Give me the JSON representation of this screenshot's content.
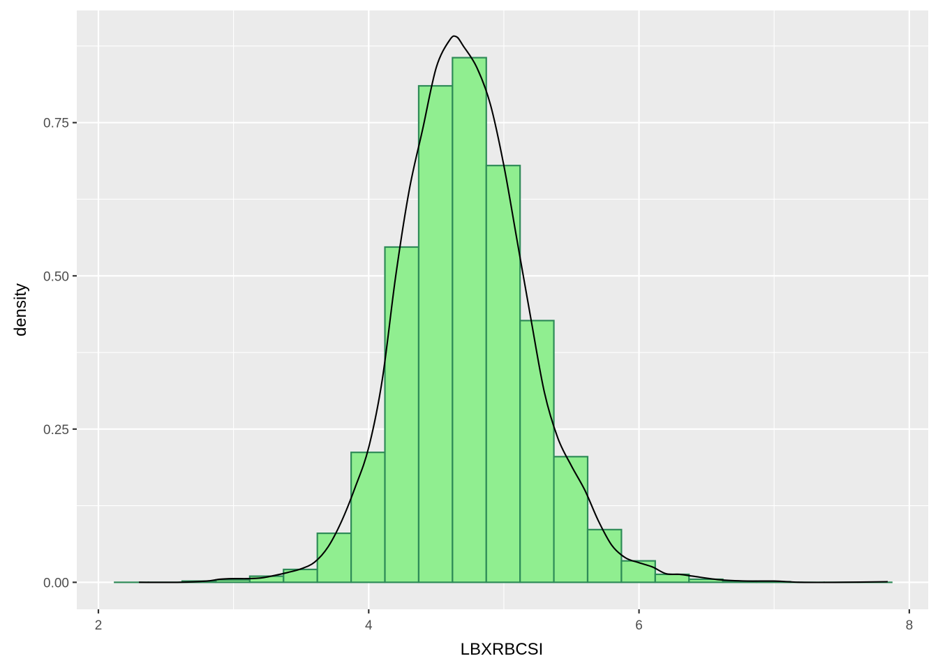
{
  "chart_data": {
    "type": "histogram",
    "title": "",
    "xlabel": "LBXRBCSI",
    "ylabel": "density",
    "xlim": [
      1.84,
      8.14
    ],
    "ylim": [
      -0.044,
      0.933
    ],
    "x_ticks": [
      2,
      4,
      6,
      8
    ],
    "x_tick_labels": [
      "2",
      "4",
      "6",
      "8"
    ],
    "y_ticks": [
      0,
      0.25,
      0.5,
      0.75
    ],
    "y_tick_labels": [
      "0.00",
      "0.25",
      "0.50",
      "0.75"
    ],
    "grid": true,
    "bin_width": 0.25,
    "bins": [
      {
        "x0": 2.12,
        "x1": 2.37,
        "density": 0.0
      },
      {
        "x0": 2.37,
        "x1": 2.62,
        "density": 0.0
      },
      {
        "x0": 2.62,
        "x1": 2.87,
        "density": 0.002
      },
      {
        "x0": 2.87,
        "x1": 3.12,
        "density": 0.004
      },
      {
        "x0": 3.12,
        "x1": 3.37,
        "density": 0.01
      },
      {
        "x0": 3.37,
        "x1": 3.62,
        "density": 0.021
      },
      {
        "x0": 3.62,
        "x1": 3.87,
        "density": 0.08
      },
      {
        "x0": 3.87,
        "x1": 4.12,
        "density": 0.212
      },
      {
        "x0": 4.12,
        "x1": 4.37,
        "density": 0.547
      },
      {
        "x0": 4.37,
        "x1": 4.62,
        "density": 0.81
      },
      {
        "x0": 4.62,
        "x1": 4.87,
        "density": 0.856
      },
      {
        "x0": 4.87,
        "x1": 5.12,
        "density": 0.68
      },
      {
        "x0": 5.12,
        "x1": 5.37,
        "density": 0.427
      },
      {
        "x0": 5.37,
        "x1": 5.62,
        "density": 0.205
      },
      {
        "x0": 5.62,
        "x1": 5.87,
        "density": 0.086
      },
      {
        "x0": 5.87,
        "x1": 6.12,
        "density": 0.035
      },
      {
        "x0": 6.12,
        "x1": 6.37,
        "density": 0.013
      },
      {
        "x0": 6.37,
        "x1": 6.62,
        "density": 0.005
      },
      {
        "x0": 6.62,
        "x1": 6.87,
        "density": 0.002
      },
      {
        "x0": 6.87,
        "x1": 7.12,
        "density": 0.001
      },
      {
        "x0": 7.12,
        "x1": 7.37,
        "density": 0.0
      },
      {
        "x0": 7.37,
        "x1": 7.62,
        "density": 0.0
      },
      {
        "x0": 7.62,
        "x1": 7.87,
        "density": 0.0
      }
    ],
    "density_curve": {
      "x": [
        2.3,
        2.6,
        2.8,
        2.9,
        3.0,
        3.1,
        3.2,
        3.3,
        3.4,
        3.5,
        3.6,
        3.7,
        3.8,
        3.9,
        4.0,
        4.1,
        4.2,
        4.3,
        4.4,
        4.5,
        4.6,
        4.65,
        4.7,
        4.8,
        4.9,
        5.0,
        5.1,
        5.2,
        5.3,
        5.4,
        5.5,
        5.6,
        5.7,
        5.8,
        5.9,
        6.0,
        6.1,
        6.2,
        6.3,
        6.4,
        6.6,
        6.8,
        7.0,
        7.2,
        7.5,
        7.84
      ],
      "y": [
        0.0,
        0.0,
        0.002,
        0.005,
        0.006,
        0.006,
        0.007,
        0.011,
        0.016,
        0.022,
        0.033,
        0.058,
        0.1,
        0.155,
        0.22,
        0.33,
        0.5,
        0.64,
        0.74,
        0.84,
        0.885,
        0.89,
        0.875,
        0.84,
        0.78,
        0.68,
        0.555,
        0.43,
        0.31,
        0.235,
        0.19,
        0.15,
        0.1,
        0.06,
        0.04,
        0.032,
        0.025,
        0.014,
        0.013,
        0.01,
        0.004,
        0.002,
        0.002,
        0.0,
        0.0,
        0.001
      ]
    },
    "colors": {
      "panel_background": "#ebebeb",
      "grid_major": "#ffffff",
      "bar_fill": "#90ee90",
      "bar_stroke": "#2e8b57",
      "curve": "#000000",
      "tick_mark": "#333333",
      "tick_label": "#4d4d4d",
      "axis_title": "#000000"
    }
  }
}
